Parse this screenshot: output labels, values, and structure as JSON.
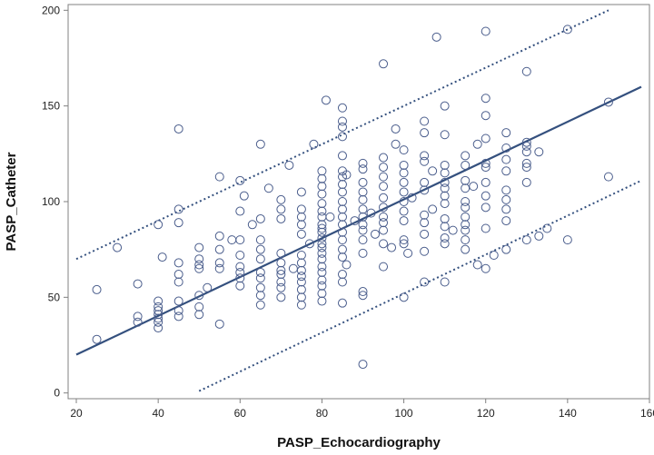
{
  "chart_data": {
    "type": "scatter",
    "xlabel": "PASP_Echocardiography",
    "ylabel": "PASP_Catheter",
    "xlim": [
      18,
      160
    ],
    "ylim": [
      -3,
      203
    ],
    "xticks": [
      "20",
      "40",
      "60",
      "80",
      "100",
      "120",
      "140",
      "160"
    ],
    "yticks": [
      "0",
      "50",
      "100",
      "150",
      "200"
    ],
    "grid": false,
    "legend": "none",
    "colors": {
      "points": "#4a5d8c",
      "line": "#34507e",
      "frame": "#808080"
    },
    "regression_line": {
      "x": [
        20,
        158
      ],
      "y": [
        20,
        160
      ]
    },
    "prediction_upper": {
      "x": [
        20,
        150
      ],
      "y": [
        70,
        200
      ]
    },
    "prediction_lower": {
      "x": [
        50,
        158
      ],
      "y": [
        1,
        111
      ]
    },
    "points": [
      {
        "x": 25,
        "y": 28
      },
      {
        "x": 25,
        "y": 54
      },
      {
        "x": 30,
        "y": 76
      },
      {
        "x": 35,
        "y": 57
      },
      {
        "x": 35,
        "y": 40
      },
      {
        "x": 35,
        "y": 37
      },
      {
        "x": 40,
        "y": 34
      },
      {
        "x": 40,
        "y": 37
      },
      {
        "x": 40,
        "y": 39
      },
      {
        "x": 40,
        "y": 41
      },
      {
        "x": 40,
        "y": 43
      },
      {
        "x": 40,
        "y": 45
      },
      {
        "x": 40,
        "y": 48
      },
      {
        "x": 40,
        "y": 88
      },
      {
        "x": 41,
        "y": 71
      },
      {
        "x": 45,
        "y": 138
      },
      {
        "x": 45,
        "y": 96
      },
      {
        "x": 45,
        "y": 89
      },
      {
        "x": 45,
        "y": 68
      },
      {
        "x": 45,
        "y": 62
      },
      {
        "x": 45,
        "y": 58
      },
      {
        "x": 45,
        "y": 48
      },
      {
        "x": 45,
        "y": 43
      },
      {
        "x": 45,
        "y": 40
      },
      {
        "x": 50,
        "y": 76
      },
      {
        "x": 50,
        "y": 70
      },
      {
        "x": 50,
        "y": 67
      },
      {
        "x": 50,
        "y": 65
      },
      {
        "x": 50,
        "y": 51
      },
      {
        "x": 50,
        "y": 45
      },
      {
        "x": 50,
        "y": 41
      },
      {
        "x": 52,
        "y": 55
      },
      {
        "x": 55,
        "y": 113
      },
      {
        "x": 55,
        "y": 82
      },
      {
        "x": 55,
        "y": 75
      },
      {
        "x": 55,
        "y": 68
      },
      {
        "x": 55,
        "y": 65
      },
      {
        "x": 55,
        "y": 36
      },
      {
        "x": 58,
        "y": 80
      },
      {
        "x": 60,
        "y": 111
      },
      {
        "x": 60,
        "y": 95
      },
      {
        "x": 60,
        "y": 80
      },
      {
        "x": 60,
        "y": 72
      },
      {
        "x": 60,
        "y": 66
      },
      {
        "x": 60,
        "y": 63
      },
      {
        "x": 60,
        "y": 60
      },
      {
        "x": 60,
        "y": 56
      },
      {
        "x": 61,
        "y": 103
      },
      {
        "x": 63,
        "y": 88
      },
      {
        "x": 65,
        "y": 130
      },
      {
        "x": 65,
        "y": 91
      },
      {
        "x": 65,
        "y": 80
      },
      {
        "x": 65,
        "y": 75
      },
      {
        "x": 65,
        "y": 70
      },
      {
        "x": 65,
        "y": 63
      },
      {
        "x": 65,
        "y": 60
      },
      {
        "x": 65,
        "y": 55
      },
      {
        "x": 65,
        "y": 51
      },
      {
        "x": 65,
        "y": 46
      },
      {
        "x": 67,
        "y": 107
      },
      {
        "x": 70,
        "y": 101
      },
      {
        "x": 70,
        "y": 96
      },
      {
        "x": 70,
        "y": 91
      },
      {
        "x": 70,
        "y": 73
      },
      {
        "x": 70,
        "y": 68
      },
      {
        "x": 70,
        "y": 64
      },
      {
        "x": 70,
        "y": 62
      },
      {
        "x": 70,
        "y": 58
      },
      {
        "x": 70,
        "y": 55
      },
      {
        "x": 70,
        "y": 50
      },
      {
        "x": 72,
        "y": 119
      },
      {
        "x": 73,
        "y": 65
      },
      {
        "x": 75,
        "y": 105
      },
      {
        "x": 75,
        "y": 96
      },
      {
        "x": 75,
        "y": 92
      },
      {
        "x": 75,
        "y": 88
      },
      {
        "x": 75,
        "y": 83
      },
      {
        "x": 75,
        "y": 72
      },
      {
        "x": 75,
        "y": 68
      },
      {
        "x": 75,
        "y": 64
      },
      {
        "x": 75,
        "y": 61
      },
      {
        "x": 75,
        "y": 58
      },
      {
        "x": 75,
        "y": 54
      },
      {
        "x": 75,
        "y": 50
      },
      {
        "x": 75,
        "y": 46
      },
      {
        "x": 77,
        "y": 78
      },
      {
        "x": 78,
        "y": 130
      },
      {
        "x": 80,
        "y": 116
      },
      {
        "x": 80,
        "y": 112
      },
      {
        "x": 80,
        "y": 108
      },
      {
        "x": 80,
        "y": 104
      },
      {
        "x": 80,
        "y": 99
      },
      {
        "x": 80,
        "y": 95
      },
      {
        "x": 80,
        "y": 92
      },
      {
        "x": 80,
        "y": 88
      },
      {
        "x": 80,
        "y": 86
      },
      {
        "x": 80,
        "y": 84
      },
      {
        "x": 80,
        "y": 81
      },
      {
        "x": 80,
        "y": 78
      },
      {
        "x": 80,
        "y": 76
      },
      {
        "x": 80,
        "y": 73
      },
      {
        "x": 80,
        "y": 70
      },
      {
        "x": 80,
        "y": 66
      },
      {
        "x": 80,
        "y": 63
      },
      {
        "x": 80,
        "y": 59
      },
      {
        "x": 80,
        "y": 56
      },
      {
        "x": 80,
        "y": 52
      },
      {
        "x": 80,
        "y": 48
      },
      {
        "x": 81,
        "y": 153
      },
      {
        "x": 82,
        "y": 92
      },
      {
        "x": 85,
        "y": 149
      },
      {
        "x": 85,
        "y": 142
      },
      {
        "x": 85,
        "y": 139
      },
      {
        "x": 85,
        "y": 134
      },
      {
        "x": 85,
        "y": 124
      },
      {
        "x": 85,
        "y": 116
      },
      {
        "x": 85,
        "y": 113
      },
      {
        "x": 85,
        "y": 109
      },
      {
        "x": 85,
        "y": 105
      },
      {
        "x": 85,
        "y": 100
      },
      {
        "x": 85,
        "y": 96
      },
      {
        "x": 85,
        "y": 92
      },
      {
        "x": 85,
        "y": 88
      },
      {
        "x": 85,
        "y": 84
      },
      {
        "x": 85,
        "y": 80
      },
      {
        "x": 85,
        "y": 75
      },
      {
        "x": 85,
        "y": 71
      },
      {
        "x": 85,
        "y": 62
      },
      {
        "x": 85,
        "y": 58
      },
      {
        "x": 85,
        "y": 47
      },
      {
        "x": 86,
        "y": 114
      },
      {
        "x": 86,
        "y": 67
      },
      {
        "x": 88,
        "y": 90
      },
      {
        "x": 90,
        "y": 120
      },
      {
        "x": 90,
        "y": 117
      },
      {
        "x": 90,
        "y": 110
      },
      {
        "x": 90,
        "y": 105
      },
      {
        "x": 90,
        "y": 101
      },
      {
        "x": 90,
        "y": 96
      },
      {
        "x": 90,
        "y": 92
      },
      {
        "x": 90,
        "y": 88
      },
      {
        "x": 90,
        "y": 85
      },
      {
        "x": 90,
        "y": 80
      },
      {
        "x": 90,
        "y": 73
      },
      {
        "x": 90,
        "y": 53
      },
      {
        "x": 90,
        "y": 51
      },
      {
        "x": 90,
        "y": 15
      },
      {
        "x": 92,
        "y": 94
      },
      {
        "x": 93,
        "y": 83
      },
      {
        "x": 95,
        "y": 172
      },
      {
        "x": 95,
        "y": 123
      },
      {
        "x": 95,
        "y": 118
      },
      {
        "x": 95,
        "y": 113
      },
      {
        "x": 95,
        "y": 108
      },
      {
        "x": 95,
        "y": 102
      },
      {
        "x": 95,
        "y": 97
      },
      {
        "x": 95,
        "y": 92
      },
      {
        "x": 95,
        "y": 89
      },
      {
        "x": 95,
        "y": 85
      },
      {
        "x": 95,
        "y": 78
      },
      {
        "x": 95,
        "y": 66
      },
      {
        "x": 97,
        "y": 76
      },
      {
        "x": 98,
        "y": 138
      },
      {
        "x": 98,
        "y": 130
      },
      {
        "x": 100,
        "y": 127
      },
      {
        "x": 100,
        "y": 119
      },
      {
        "x": 100,
        "y": 115
      },
      {
        "x": 100,
        "y": 110
      },
      {
        "x": 100,
        "y": 105
      },
      {
        "x": 100,
        "y": 100
      },
      {
        "x": 100,
        "y": 95
      },
      {
        "x": 100,
        "y": 90
      },
      {
        "x": 100,
        "y": 80
      },
      {
        "x": 100,
        "y": 78
      },
      {
        "x": 100,
        "y": 50
      },
      {
        "x": 101,
        "y": 73
      },
      {
        "x": 102,
        "y": 102
      },
      {
        "x": 105,
        "y": 142
      },
      {
        "x": 105,
        "y": 136
      },
      {
        "x": 105,
        "y": 124
      },
      {
        "x": 105,
        "y": 121
      },
      {
        "x": 105,
        "y": 110
      },
      {
        "x": 105,
        "y": 106
      },
      {
        "x": 105,
        "y": 93
      },
      {
        "x": 105,
        "y": 89
      },
      {
        "x": 105,
        "y": 83
      },
      {
        "x": 105,
        "y": 74
      },
      {
        "x": 105,
        "y": 58
      },
      {
        "x": 107,
        "y": 116
      },
      {
        "x": 107,
        "y": 96
      },
      {
        "x": 108,
        "y": 186
      },
      {
        "x": 110,
        "y": 150
      },
      {
        "x": 110,
        "y": 135
      },
      {
        "x": 110,
        "y": 119
      },
      {
        "x": 110,
        "y": 115
      },
      {
        "x": 110,
        "y": 110
      },
      {
        "x": 110,
        "y": 107
      },
      {
        "x": 110,
        "y": 103
      },
      {
        "x": 110,
        "y": 99
      },
      {
        "x": 110,
        "y": 91
      },
      {
        "x": 110,
        "y": 87
      },
      {
        "x": 110,
        "y": 81
      },
      {
        "x": 110,
        "y": 78
      },
      {
        "x": 110,
        "y": 58
      },
      {
        "x": 112,
        "y": 85
      },
      {
        "x": 115,
        "y": 124
      },
      {
        "x": 115,
        "y": 119
      },
      {
        "x": 115,
        "y": 111
      },
      {
        "x": 115,
        "y": 107
      },
      {
        "x": 115,
        "y": 100
      },
      {
        "x": 115,
        "y": 97
      },
      {
        "x": 115,
        "y": 92
      },
      {
        "x": 115,
        "y": 88
      },
      {
        "x": 115,
        "y": 85
      },
      {
        "x": 115,
        "y": 80
      },
      {
        "x": 115,
        "y": 75
      },
      {
        "x": 117,
        "y": 108
      },
      {
        "x": 118,
        "y": 130
      },
      {
        "x": 118,
        "y": 67
      },
      {
        "x": 120,
        "y": 189
      },
      {
        "x": 120,
        "y": 154
      },
      {
        "x": 120,
        "y": 145
      },
      {
        "x": 120,
        "y": 133
      },
      {
        "x": 120,
        "y": 120
      },
      {
        "x": 120,
        "y": 118
      },
      {
        "x": 120,
        "y": 110
      },
      {
        "x": 120,
        "y": 103
      },
      {
        "x": 120,
        "y": 97
      },
      {
        "x": 120,
        "y": 86
      },
      {
        "x": 120,
        "y": 65
      },
      {
        "x": 122,
        "y": 72
      },
      {
        "x": 125,
        "y": 136
      },
      {
        "x": 125,
        "y": 128
      },
      {
        "x": 125,
        "y": 122
      },
      {
        "x": 125,
        "y": 116
      },
      {
        "x": 125,
        "y": 106
      },
      {
        "x": 125,
        "y": 101
      },
      {
        "x": 125,
        "y": 96
      },
      {
        "x": 125,
        "y": 90
      },
      {
        "x": 125,
        "y": 75
      },
      {
        "x": 130,
        "y": 168
      },
      {
        "x": 130,
        "y": 131
      },
      {
        "x": 130,
        "y": 129
      },
      {
        "x": 130,
        "y": 126
      },
      {
        "x": 130,
        "y": 120
      },
      {
        "x": 130,
        "y": 118
      },
      {
        "x": 130,
        "y": 110
      },
      {
        "x": 130,
        "y": 80
      },
      {
        "x": 133,
        "y": 126
      },
      {
        "x": 133,
        "y": 82
      },
      {
        "x": 135,
        "y": 86
      },
      {
        "x": 140,
        "y": 190
      },
      {
        "x": 140,
        "y": 80
      },
      {
        "x": 150,
        "y": 152
      },
      {
        "x": 150,
        "y": 113
      }
    ]
  }
}
